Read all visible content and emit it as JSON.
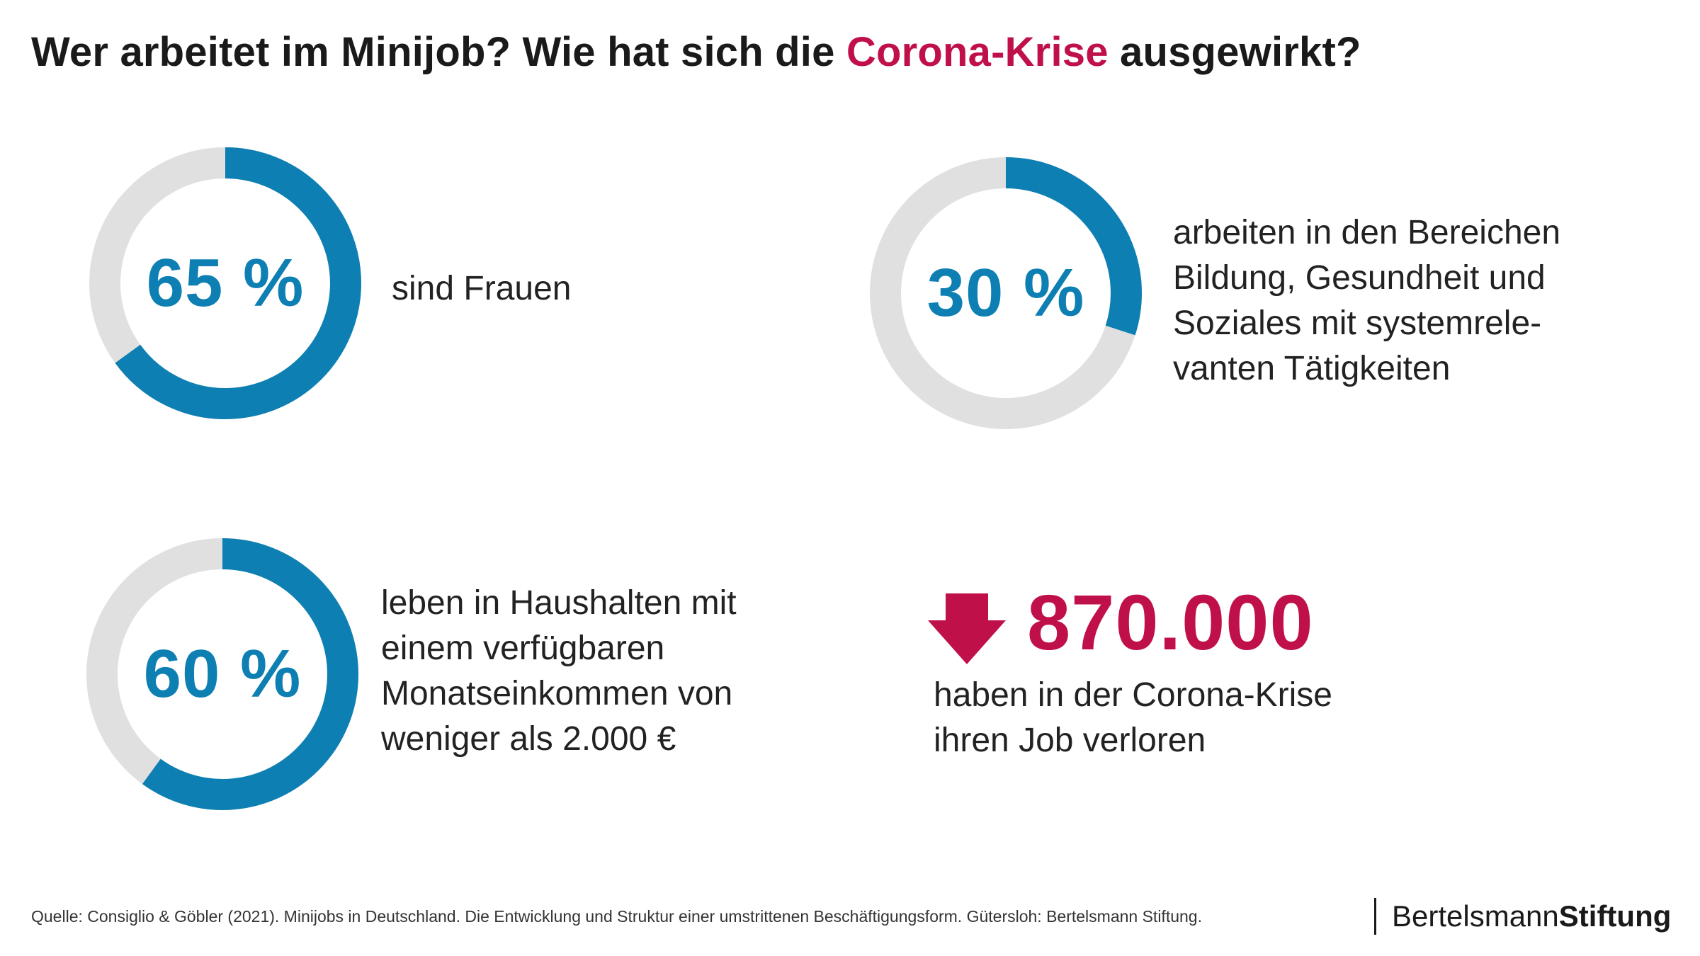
{
  "title": {
    "prefix": "Wer arbeitet im Minijob? Wie hat sich die ",
    "accent": "Corona-Krise",
    "suffix": " ausgewirkt?"
  },
  "colors": {
    "ring": "#0d7fb2",
    "track": "#e0e0e0",
    "accent": "#c0104a"
  },
  "chart_data": [
    {
      "type": "pie",
      "label": "65 %",
      "values": [
        65,
        35
      ],
      "description": [
        "sind Frauen"
      ]
    },
    {
      "type": "pie",
      "label": "30 %",
      "values": [
        30,
        70
      ],
      "description": [
        "arbeiten in den Bereichen",
        "Bildung, Gesundheit und",
        "Soziales mit systemrele-",
        "vanten Tätigkeiten"
      ]
    },
    {
      "type": "pie",
      "label": "60 %",
      "values": [
        60,
        40
      ],
      "description": [
        "leben in Haushalten mit",
        "einem verfügbaren",
        "Monatseinkommen von",
        "weniger als 2.000 €"
      ]
    }
  ],
  "job_loss": {
    "icon": "arrow-down-icon",
    "number": "870.000",
    "description": [
      "haben in der Corona-Krise",
      "ihren Job verloren"
    ]
  },
  "source": "Quelle: Consiglio & Göbler (2021). Minijobs in Deutschland. Die Entwicklung und Struktur einer umstrittenen Beschäftigungsform. Gütersloh: Bertelsmann Stiftung.",
  "brand": {
    "light": "Bertelsmann",
    "bold": "Stiftung"
  }
}
